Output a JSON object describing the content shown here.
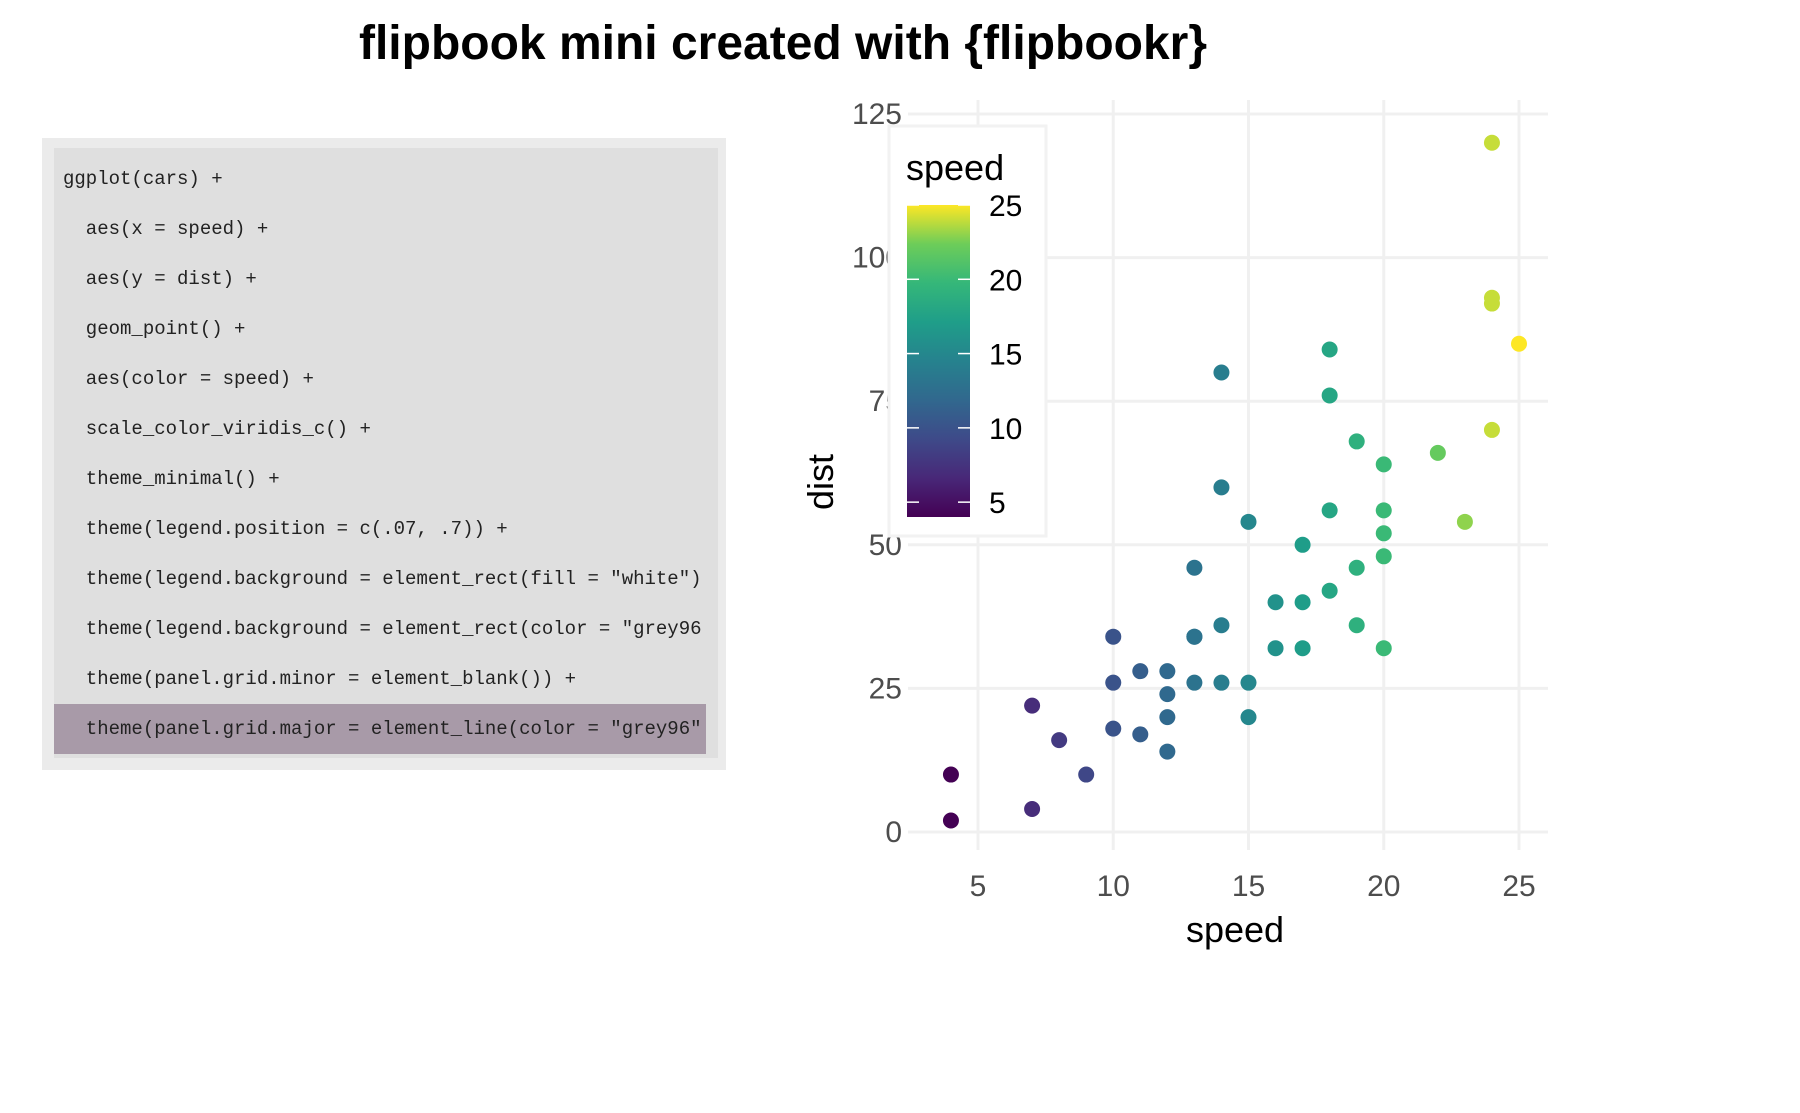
{
  "title": "flipbook mini created with {flipbookr}",
  "code": {
    "lines": [
      "ggplot(cars) +",
      "  aes(x = speed) +",
      "  aes(y = dist) +",
      "  geom_point() +",
      "  aes(color = speed) +",
      "  scale_color_viridis_c() +",
      "  theme_minimal() +",
      "  theme(legend.position = c(.07, .7)) +",
      "  theme(legend.background = element_rect(fill = \"white\")",
      "  theme(legend.background = element_rect(color = \"grey96",
      "  theme(panel.grid.minor = element_blank()) +",
      "  theme(panel.grid.major = element_line(color = \"grey96\""
    ],
    "highlighted_index": 11,
    "highlight_color": "#a89aa8"
  },
  "chart_data": {
    "type": "scatter",
    "title": "",
    "xlabel": "speed",
    "ylabel": "dist",
    "xlim": [
      3,
      26
    ],
    "ylim": [
      0,
      125
    ],
    "x_ticks": [
      5,
      10,
      15,
      20,
      25
    ],
    "y_ticks": [
      0,
      25,
      50,
      75,
      100,
      125
    ],
    "grid": "major only",
    "grid_color": "#f0f0f0",
    "color_by": "speed",
    "colormap": "viridis",
    "legend": {
      "title": "speed",
      "ticks": [
        5,
        10,
        15,
        20,
        25
      ],
      "range": [
        4,
        25
      ],
      "placement": "top-left inside plot"
    },
    "points": [
      {
        "x": 4,
        "y": 2
      },
      {
        "x": 4,
        "y": 10
      },
      {
        "x": 7,
        "y": 4
      },
      {
        "x": 7,
        "y": 22
      },
      {
        "x": 8,
        "y": 16
      },
      {
        "x": 9,
        "y": 10
      },
      {
        "x": 10,
        "y": 18
      },
      {
        "x": 10,
        "y": 26
      },
      {
        "x": 10,
        "y": 34
      },
      {
        "x": 11,
        "y": 17
      },
      {
        "x": 11,
        "y": 28
      },
      {
        "x": 12,
        "y": 14
      },
      {
        "x": 12,
        "y": 20
      },
      {
        "x": 12,
        "y": 24
      },
      {
        "x": 12,
        "y": 28
      },
      {
        "x": 13,
        "y": 26
      },
      {
        "x": 13,
        "y": 34
      },
      {
        "x": 13,
        "y": 34
      },
      {
        "x": 13,
        "y": 46
      },
      {
        "x": 14,
        "y": 26
      },
      {
        "x": 14,
        "y": 36
      },
      {
        "x": 14,
        "y": 60
      },
      {
        "x": 14,
        "y": 80
      },
      {
        "x": 15,
        "y": 20
      },
      {
        "x": 15,
        "y": 26
      },
      {
        "x": 15,
        "y": 54
      },
      {
        "x": 16,
        "y": 32
      },
      {
        "x": 16,
        "y": 40
      },
      {
        "x": 17,
        "y": 32
      },
      {
        "x": 17,
        "y": 40
      },
      {
        "x": 17,
        "y": 50
      },
      {
        "x": 18,
        "y": 42
      },
      {
        "x": 18,
        "y": 56
      },
      {
        "x": 18,
        "y": 76
      },
      {
        "x": 18,
        "y": 84
      },
      {
        "x": 19,
        "y": 36
      },
      {
        "x": 19,
        "y": 46
      },
      {
        "x": 19,
        "y": 68
      },
      {
        "x": 20,
        "y": 32
      },
      {
        "x": 20,
        "y": 48
      },
      {
        "x": 20,
        "y": 52
      },
      {
        "x": 20,
        "y": 56
      },
      {
        "x": 20,
        "y": 64
      },
      {
        "x": 22,
        "y": 66
      },
      {
        "x": 23,
        "y": 54
      },
      {
        "x": 24,
        "y": 70
      },
      {
        "x": 24,
        "y": 92
      },
      {
        "x": 24,
        "y": 93
      },
      {
        "x": 24,
        "y": 120
      },
      {
        "x": 25,
        "y": 85
      }
    ]
  }
}
